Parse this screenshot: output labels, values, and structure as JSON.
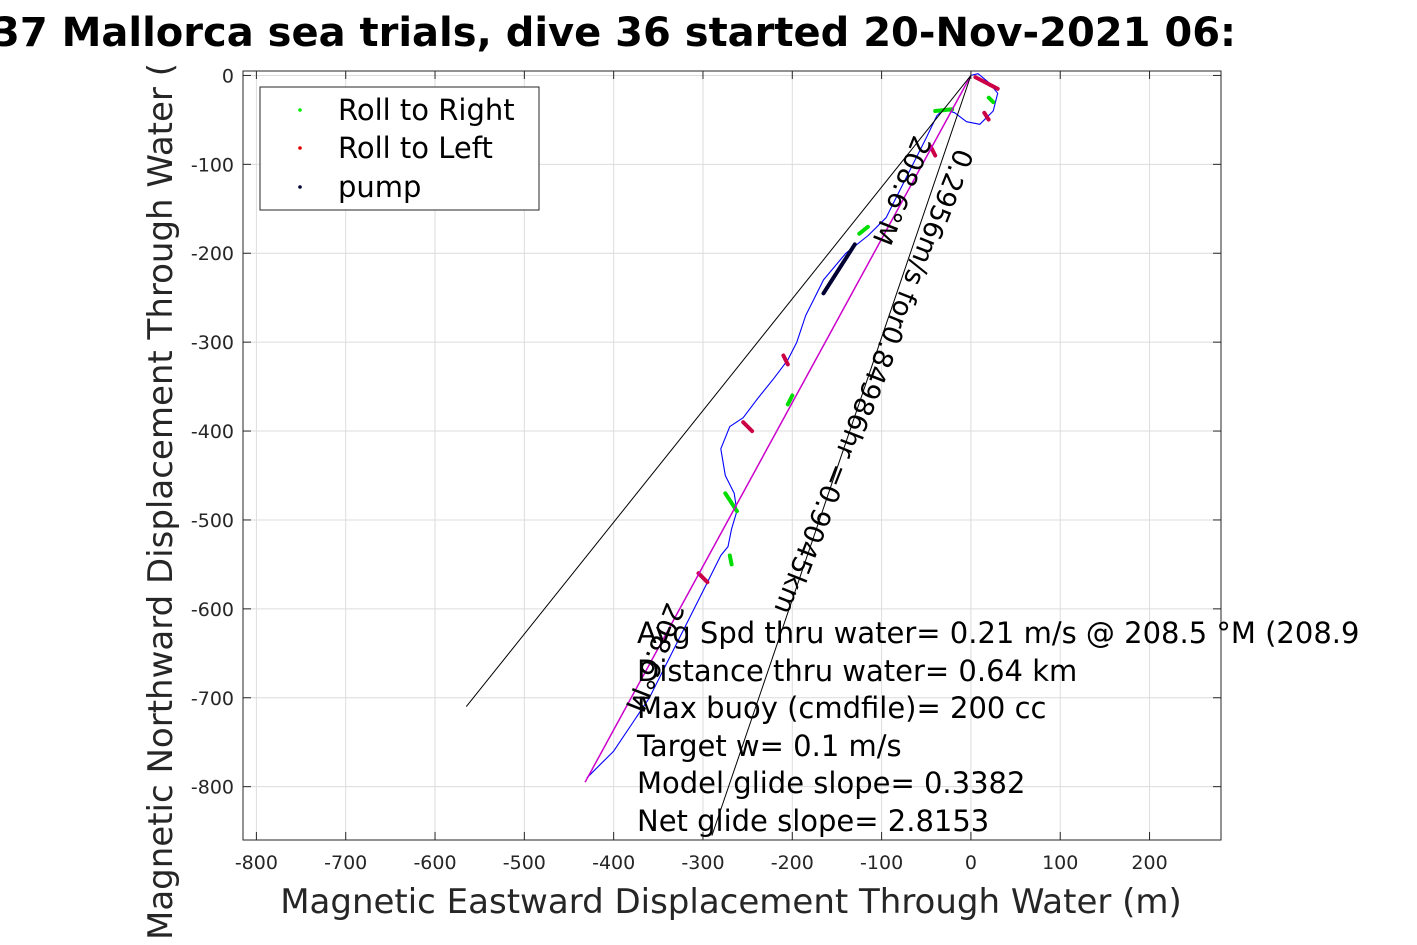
{
  "chart_data": {
    "type": "line",
    "title": "37 Mallorca sea trials, dive 36 started 20-Nov-2021 06:",
    "xlabel": "Magnetic Eastward Displacement Through Water (m)",
    "ylabel": "Magnetic Northward Displacement Through Water (",
    "xlim": [
      -815,
      280
    ],
    "ylim": [
      -860,
      5
    ],
    "xticks": [
      -800,
      -700,
      -600,
      -500,
      -400,
      -300,
      -200,
      -100,
      0,
      100,
      200
    ],
    "yticks": [
      0,
      -100,
      -200,
      -300,
      -400,
      -500,
      -600,
      -700,
      -800
    ],
    "grid": true,
    "legend_position": "top-left",
    "legend": [
      {
        "label": "Roll to Right",
        "color": "#00ee00"
      },
      {
        "label": "Roll to Left",
        "color": "#e00000"
      },
      {
        "label": "pump",
        "color": "#000033"
      }
    ],
    "series": [
      {
        "role": "track",
        "color": "#0000ff",
        "x": [
          0,
          8,
          20,
          30,
          25,
          10,
          -5,
          -18,
          -30,
          -38,
          -50,
          -70,
          -95,
          -115,
          -140,
          -165,
          -175,
          -185,
          -195,
          -205,
          -220,
          -240,
          -255,
          -270,
          -280,
          -275,
          -265,
          -262,
          -268,
          -272,
          -280,
          -300,
          -330,
          -360,
          -400,
          -430
        ],
        "y": [
          0,
          2,
          -8,
          -20,
          -40,
          -55,
          -52,
          -42,
          -38,
          -45,
          -70,
          -110,
          -160,
          -180,
          -200,
          -230,
          -250,
          -270,
          -300,
          -320,
          -340,
          -365,
          -385,
          -395,
          -420,
          -450,
          -470,
          -490,
          -510,
          -530,
          -540,
          -580,
          -640,
          -700,
          -760,
          -790
        ]
      },
      {
        "role": "roll_right",
        "color": "#00dd00",
        "segments": [
          {
            "x": [
              -40,
              -20
            ],
            "y": [
              -40,
              -38
            ]
          },
          {
            "x": [
              -125,
              -115
            ],
            "y": [
              -178,
              -170
            ]
          },
          {
            "x": [
              -205,
              -200
            ],
            "y": [
              -370,
              -360
            ]
          },
          {
            "x": [
              -275,
              -262
            ],
            "y": [
              -470,
              -490
            ]
          },
          {
            "x": [
              -270,
              -268
            ],
            "y": [
              -540,
              -550
            ]
          },
          {
            "x": [
              20,
              25
            ],
            "y": [
              -25,
              -30
            ]
          }
        ]
      },
      {
        "role": "roll_left",
        "color": "#cc0044",
        "segments": [
          {
            "x": [
              5,
              30
            ],
            "y": [
              -2,
              -15
            ]
          },
          {
            "x": [
              15,
              20
            ],
            "y": [
              -42,
              -50
            ]
          },
          {
            "x": [
              -255,
              -245
            ],
            "y": [
              -390,
              -400
            ]
          },
          {
            "x": [
              -210,
              -205
            ],
            "y": [
              -315,
              -325
            ]
          },
          {
            "x": [
              -305,
              -295
            ],
            "y": [
              -560,
              -570
            ]
          },
          {
            "x": [
              -45,
              -40
            ],
            "y": [
              -80,
              -90
            ]
          }
        ]
      },
      {
        "role": "pump",
        "color": "#000033",
        "segments": [
          {
            "x": [
              -165,
              -130
            ],
            "y": [
              -245,
              -190
            ]
          }
        ]
      },
      {
        "role": "net_heading",
        "color": "#cc00cc",
        "x": [
          0,
          -432
        ],
        "y": [
          0,
          -795
        ]
      },
      {
        "role": "heading_wedge_left",
        "color": "#000000",
        "x": [
          0,
          -565
        ],
        "y": [
          0,
          -710
        ]
      },
      {
        "role": "heading_wedge_right",
        "color": "#000000",
        "x": [
          0,
          -290
        ],
        "y": [
          0,
          -855
        ]
      }
    ],
    "annotations": {
      "line_label": "0.2956m/s for0.84986hr =0.9045km",
      "heading_top": "208.6°M",
      "heading_bottom": "208.6°M",
      "stats": [
        "Avg Spd thru water=  0.21 m/s @ 208.5 °M (208.9",
        "Distance thru water=  0.64 km",
        "Max buoy (cmdfile)= 200 cc",
        "Target w= 0.1 m/s",
        "Model glide slope= 0.3382",
        "Net glide slope= 2.8153"
      ]
    }
  }
}
